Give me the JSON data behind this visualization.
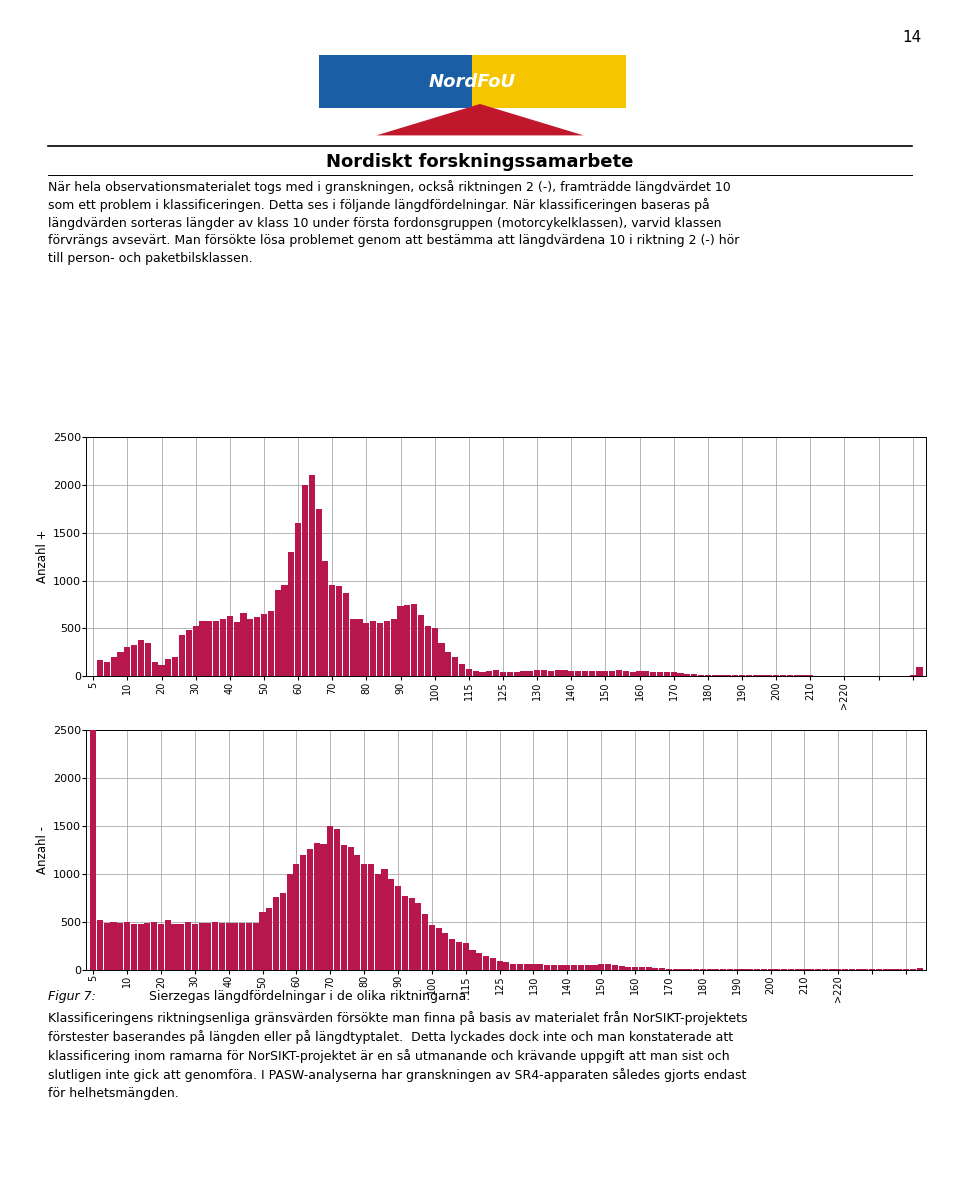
{
  "chart1_ylabel": "Anzahl +",
  "chart2_ylabel": "Anzahl -",
  "bar_color": "#B8174E",
  "background_color": "#ffffff",
  "grid_color": "#999999",
  "ylim": [
    0,
    2500
  ],
  "yticks": [
    0,
    500,
    1000,
    1500,
    2000,
    2500
  ],
  "page_number": "14",
  "header_title": "Nordiskt forskningssamarbete",
  "figure_caption_label": "Figur 7:",
  "figure_caption_text": "Sierzegas längdfördelningar i de olika riktningarna.",
  "body_text_top": "När hela observationsmaterialet togs med i granskningen, också riktningen 2 (-), framträdde längdvärdet 10\nsom ett problem i klassificeringen. Detta ses i följande längdfördelningar. När klassificeringen baseras på\nlängdvärden sorteras längder av klass 10 under första fordonsgruppen (motorcykelklassen), varvid klassen\nförvrängs avsevärt. Man försökte lösa problemet genom att bestämma att längdvärdena 10 i riktning 2 (-) hör\ntill person- och paketbilsklassen.",
  "body_text_bottom": "Klassificeringens riktningsenliga gränsvärden försökte man finna på basis av materialet från NorSIKT-projektets\nförstester baserandes på längden eller på längdtyptalet.  Detta lyckades dock inte och man konstaterade att\nklassificering inom ramarna för NorSIKT-projektet är en så utmanande och krävande uppgift att man sist och\nslutligen inte gick att genomföra. I PASW-analyserna har granskningen av SR4-apparaten således gjorts endast\nför helhetsmängden.",
  "xtick_step": 5,
  "xtick_named": {
    "0": "5",
    "5": "10",
    "10": "20",
    "15": "30",
    "20": "40",
    "25": "50",
    "30": "60",
    "35": "70",
    "40": "80",
    "45": "90",
    "50": "100",
    "55": "115",
    "60": "125",
    "65": "130",
    "70": "140",
    "75": "150",
    "80": "160",
    "85": "170",
    "90": "180",
    "95": "190",
    "100": "200",
    "105": "210",
    "110": ">220"
  },
  "chart1_values": [
    0,
    170,
    150,
    200,
    250,
    310,
    330,
    380,
    350,
    150,
    120,
    180,
    200,
    430,
    480,
    530,
    580,
    580,
    580,
    600,
    625,
    570,
    660,
    600,
    620,
    650,
    680,
    900,
    950,
    1300,
    1600,
    2000,
    2100,
    1750,
    1200,
    950,
    940,
    870,
    600,
    600,
    560,
    580,
    560,
    580,
    600,
    730,
    740,
    750,
    640,
    530,
    500,
    350,
    250,
    200,
    130,
    80,
    60,
    50,
    60,
    70,
    50,
    40,
    45,
    55,
    60,
    70,
    65,
    60,
    70,
    65,
    60,
    60,
    55,
    60,
    55,
    55,
    60,
    70,
    60,
    50,
    55,
    55,
    50,
    50,
    45,
    40,
    30,
    25,
    20,
    15,
    15,
    15,
    10,
    10,
    10,
    10,
    10,
    10,
    10,
    10,
    10,
    10,
    10,
    10,
    10,
    10,
    5,
    5,
    5,
    5,
    5,
    5,
    5,
    5,
    5,
    5,
    5,
    5,
    5,
    5,
    10,
    100
  ],
  "chart2_values": [
    2500,
    520,
    490,
    500,
    490,
    500,
    480,
    480,
    490,
    500,
    480,
    520,
    480,
    480,
    500,
    480,
    490,
    490,
    500,
    490,
    490,
    490,
    490,
    490,
    490,
    600,
    640,
    760,
    800,
    1000,
    1100,
    1200,
    1260,
    1320,
    1310,
    1500,
    1470,
    1300,
    1280,
    1200,
    1100,
    1100,
    1000,
    1050,
    950,
    870,
    770,
    750,
    700,
    580,
    470,
    430,
    380,
    320,
    290,
    280,
    200,
    170,
    140,
    120,
    90,
    80,
    60,
    55,
    55,
    55,
    60,
    50,
    45,
    45,
    50,
    50,
    50,
    45,
    50,
    60,
    60,
    50,
    40,
    30,
    30,
    25,
    25,
    20,
    20,
    10,
    10,
    10,
    10,
    10,
    10,
    10,
    10,
    10,
    10,
    10,
    10,
    10,
    10,
    10,
    10,
    10,
    10,
    5,
    5,
    5,
    5,
    5,
    5,
    5,
    5,
    5,
    5,
    5,
    5,
    5,
    5,
    5,
    5,
    5,
    5,
    5,
    15
  ]
}
